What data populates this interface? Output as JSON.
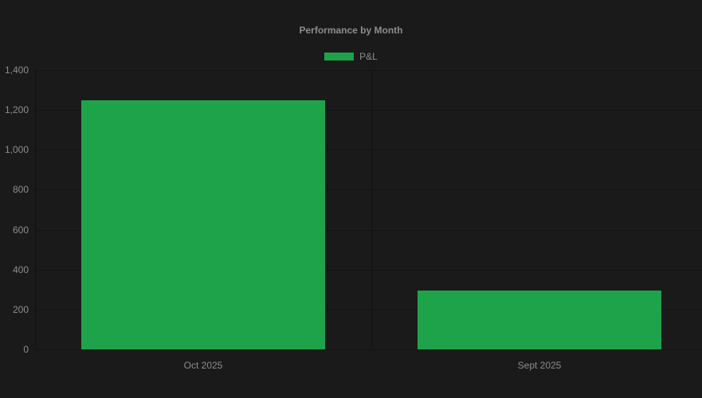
{
  "chart_data": {
    "type": "bar",
    "title": "Performance by Month",
    "categories": [
      "Oct 2025",
      "Sept 2025"
    ],
    "series": [
      {
        "name": "P&L",
        "color": "#1ea34b",
        "values": [
          1250,
          295
        ]
      }
    ],
    "xlabel": "",
    "ylabel": "",
    "ylim": [
      0,
      1400
    ],
    "ytick_step": 200,
    "ytick_labels": [
      "0",
      "200",
      "400",
      "600",
      "800",
      "1,000",
      "1,200",
      "1,400"
    ],
    "grid": true,
    "legend": {
      "position": "top",
      "entries": [
        {
          "label": "P&L",
          "color": "#1ea34b"
        }
      ]
    },
    "colors": {
      "background": "#1a1a1a",
      "text": "#8d8d8d",
      "gridline": "rgba(0,0,0,0.25)",
      "bar": "#1ea34b"
    }
  }
}
